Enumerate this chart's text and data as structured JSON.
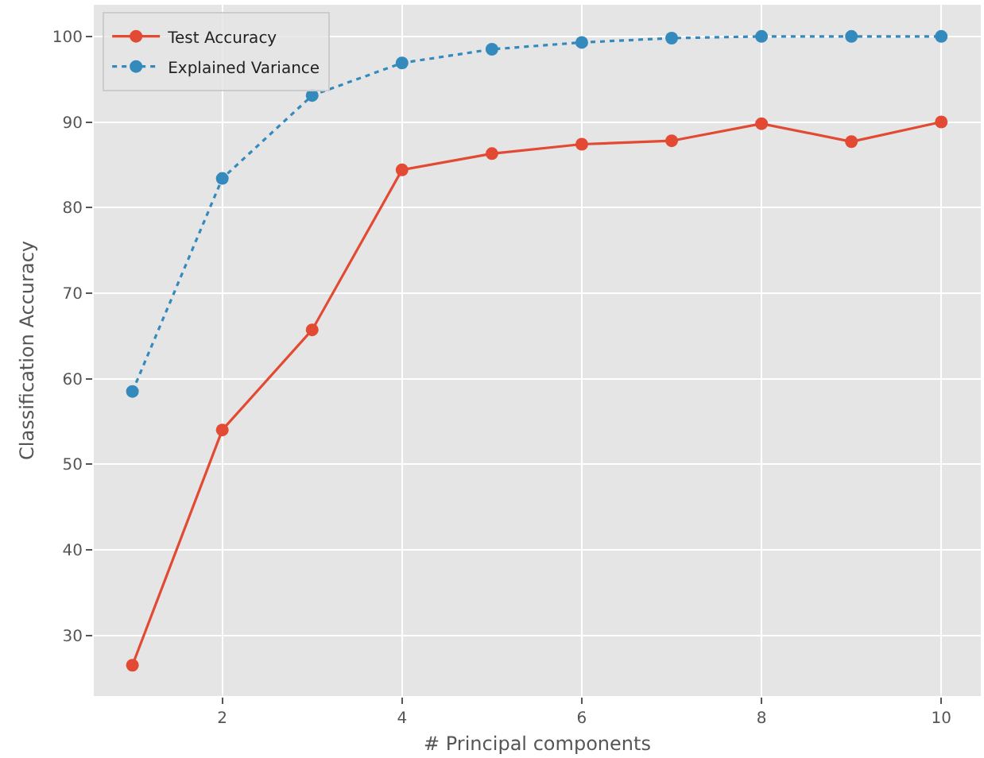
{
  "chart_data": {
    "type": "line",
    "xlabel": "# Principal components",
    "ylabel": "Classification Accuracy",
    "x": [
      1,
      2,
      3,
      4,
      5,
      6,
      7,
      8,
      9,
      10
    ],
    "series": [
      {
        "name": "Test Accuracy",
        "color": "#e24a33",
        "line_style": "solid",
        "values": [
          26.5,
          54.0,
          65.7,
          84.4,
          86.3,
          87.4,
          87.8,
          89.8,
          87.7,
          90.0
        ]
      },
      {
        "name": "Explained Variance",
        "color": "#348abd",
        "line_style": "dotted",
        "values": [
          58.5,
          83.4,
          93.1,
          96.9,
          98.5,
          99.3,
          99.8,
          100,
          100,
          100
        ]
      }
    ],
    "marker": "circle",
    "xlim": [
      0.57,
      10.44
    ],
    "ylim": [
      22.9,
      103.7
    ],
    "xticks": [
      2,
      4,
      6,
      8,
      10
    ],
    "yticks": [
      30,
      40,
      50,
      60,
      70,
      80,
      90,
      100
    ],
    "grid": true,
    "legend": "top left"
  }
}
